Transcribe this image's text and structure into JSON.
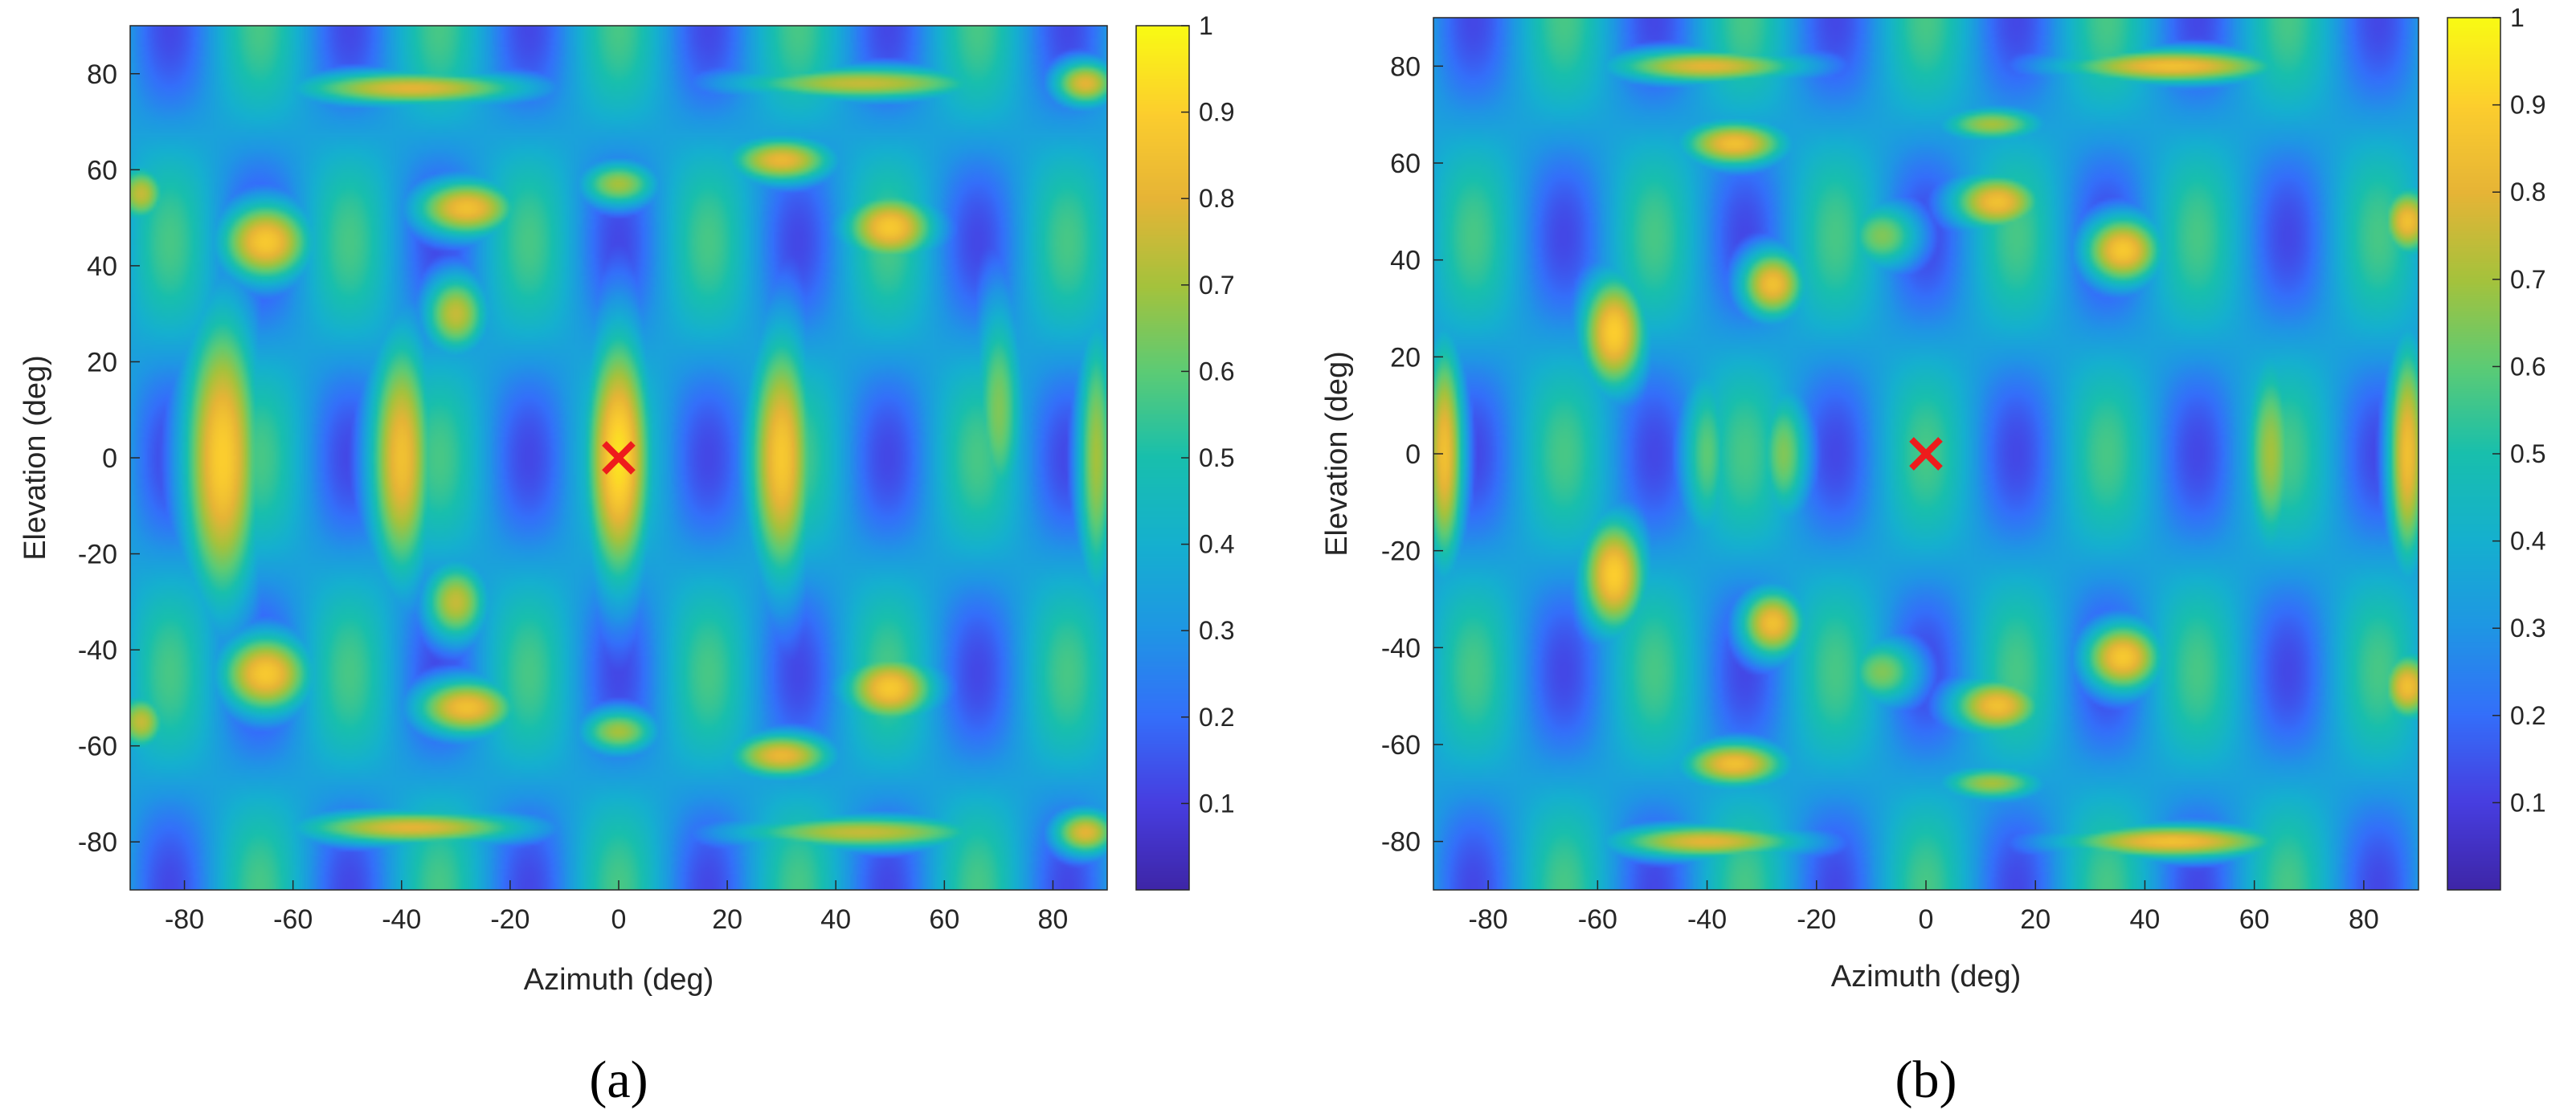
{
  "colors": {
    "colormap": "parula",
    "marker": "#ee1c1c",
    "axis": "#262626"
  },
  "chart_data": [
    {
      "type": "heatmap",
      "panel_label": "(a)",
      "xlabel": "Azimuth (deg)",
      "ylabel": "Elevation (deg)",
      "xlim": [
        -90,
        90
      ],
      "ylim": [
        -90,
        90
      ],
      "xticks": [
        -80,
        -60,
        -40,
        -20,
        0,
        20,
        40,
        60,
        80
      ],
      "yticks": [
        80,
        60,
        40,
        20,
        0,
        -20,
        -40,
        -60,
        -80
      ],
      "colorbar": {
        "range": [
          0,
          1
        ],
        "ticks": [
          "1",
          "0.9",
          "0.8",
          "0.7",
          "0.6",
          "0.5",
          "0.4",
          "0.3",
          "0.2",
          "0.1"
        ]
      },
      "marker": {
        "symbol": "x",
        "azimuth": 0,
        "elevation": 0
      },
      "description_peaks": [
        {
          "az": 0,
          "el": 0,
          "v": 0.95,
          "saz": 5,
          "sel": 22
        },
        {
          "az": -73,
          "el": 0,
          "v": 0.9,
          "saz": 6,
          "sel": 26
        },
        {
          "az": -40,
          "el": 0,
          "v": 0.85,
          "saz": 5,
          "sel": 22
        },
        {
          "az": 30,
          "el": 0,
          "v": 0.88,
          "saz": 5,
          "sel": 22
        },
        {
          "az": -65,
          "el": 45,
          "v": 0.88,
          "saz": 7,
          "sel": 7
        },
        {
          "az": -65,
          "el": -45,
          "v": 0.88,
          "saz": 7,
          "sel": 7
        },
        {
          "az": -28,
          "el": 52,
          "v": 0.85,
          "saz": 8,
          "sel": 5
        },
        {
          "az": -28,
          "el": -52,
          "v": 0.85,
          "saz": 8,
          "sel": 5
        },
        {
          "az": 50,
          "el": 48,
          "v": 0.88,
          "saz": 7,
          "sel": 6
        },
        {
          "az": 50,
          "el": -48,
          "v": 0.88,
          "saz": 7,
          "sel": 6
        },
        {
          "az": 30,
          "el": 62,
          "v": 0.82,
          "saz": 8,
          "sel": 4
        },
        {
          "az": 30,
          "el": -62,
          "v": 0.82,
          "saz": 8,
          "sel": 4
        },
        {
          "az": -30,
          "el": 30,
          "v": 0.75,
          "saz": 5,
          "sel": 7
        },
        {
          "az": -30,
          "el": -30,
          "v": 0.75,
          "saz": 5,
          "sel": 7
        },
        {
          "az": -38,
          "el": 77,
          "v": 0.8,
          "saz": 18,
          "sel": 3
        },
        {
          "az": -38,
          "el": -77,
          "v": 0.8,
          "saz": 18,
          "sel": 3
        },
        {
          "az": 45,
          "el": 78,
          "v": 0.75,
          "saz": 20,
          "sel": 3
        },
        {
          "az": 45,
          "el": -78,
          "v": 0.75,
          "saz": 20,
          "sel": 3
        },
        {
          "az": 0,
          "el": 57,
          "v": 0.7,
          "saz": 6,
          "sel": 4
        },
        {
          "az": 0,
          "el": -57,
          "v": 0.7,
          "saz": 6,
          "sel": 4
        },
        {
          "az": 70,
          "el": 10,
          "v": 0.65,
          "saz": 4,
          "sel": 20
        },
        {
          "az": 88,
          "el": 0,
          "v": 0.7,
          "saz": 3,
          "sel": 25
        },
        {
          "az": -88,
          "el": 55,
          "v": 0.75,
          "saz": 4,
          "sel": 5
        },
        {
          "az": -88,
          "el": -55,
          "v": 0.75,
          "saz": 4,
          "sel": 5
        },
        {
          "az": 86,
          "el": 78,
          "v": 0.8,
          "saz": 5,
          "sel": 4
        },
        {
          "az": 86,
          "el": -78,
          "v": 0.8,
          "saz": 5,
          "sel": 4
        }
      ]
    },
    {
      "type": "heatmap",
      "panel_label": "(b)",
      "xlabel": "Azimuth (deg)",
      "ylabel": "Elevation (deg)",
      "xlim": [
        -90,
        90
      ],
      "ylim": [
        -90,
        90
      ],
      "xticks": [
        -80,
        -60,
        -40,
        -20,
        0,
        20,
        40,
        60,
        80
      ],
      "yticks": [
        80,
        60,
        40,
        20,
        0,
        -20,
        -40,
        -60,
        -80
      ],
      "colorbar": {
        "range": [
          0,
          1
        ],
        "ticks": [
          "1",
          "0.9",
          "0.8",
          "0.7",
          "0.6",
          "0.5",
          "0.4",
          "0.3",
          "0.2",
          "0.1"
        ]
      },
      "marker": {
        "symbol": "x",
        "azimuth": 0,
        "elevation": 0
      },
      "description_peaks": [
        {
          "az": -57,
          "el": 25,
          "v": 0.9,
          "saz": 5,
          "sel": 10
        },
        {
          "az": -57,
          "el": -25,
          "v": 0.9,
          "saz": 5,
          "sel": 10
        },
        {
          "az": -88,
          "el": 0,
          "v": 0.85,
          "saz": 3,
          "sel": 20
        },
        {
          "az": 88,
          "el": 0,
          "v": 0.85,
          "saz": 3,
          "sel": 20
        },
        {
          "az": -28,
          "el": 35,
          "v": 0.85,
          "saz": 5,
          "sel": 6
        },
        {
          "az": -28,
          "el": -35,
          "v": 0.85,
          "saz": 5,
          "sel": 6
        },
        {
          "az": -35,
          "el": 64,
          "v": 0.85,
          "saz": 8,
          "sel": 4
        },
        {
          "az": -35,
          "el": -64,
          "v": 0.85,
          "saz": 8,
          "sel": 4
        },
        {
          "az": 13,
          "el": 52,
          "v": 0.85,
          "saz": 7,
          "sel": 5
        },
        {
          "az": 13,
          "el": -52,
          "v": 0.85,
          "saz": 7,
          "sel": 5
        },
        {
          "az": 36,
          "el": 42,
          "v": 0.88,
          "saz": 6,
          "sel": 6
        },
        {
          "az": 36,
          "el": -42,
          "v": 0.88,
          "saz": 6,
          "sel": 6
        },
        {
          "az": 88,
          "el": 48,
          "v": 0.85,
          "saz": 4,
          "sel": 6
        },
        {
          "az": 88,
          "el": -48,
          "v": 0.85,
          "saz": 4,
          "sel": 6
        },
        {
          "az": -40,
          "el": 80,
          "v": 0.8,
          "saz": 15,
          "sel": 3
        },
        {
          "az": -40,
          "el": -80,
          "v": 0.8,
          "saz": 15,
          "sel": 3
        },
        {
          "az": 45,
          "el": 80,
          "v": 0.85,
          "saz": 17,
          "sel": 3
        },
        {
          "az": 45,
          "el": -80,
          "v": 0.85,
          "saz": 17,
          "sel": 3
        },
        {
          "az": 63,
          "el": 0,
          "v": 0.7,
          "saz": 4,
          "sel": 18
        },
        {
          "az": -8,
          "el": 45,
          "v": 0.65,
          "saz": 6,
          "sel": 6
        },
        {
          "az": -8,
          "el": -45,
          "v": 0.65,
          "saz": 6,
          "sel": 6
        },
        {
          "az": 12,
          "el": 68,
          "v": 0.7,
          "saz": 8,
          "sel": 3
        },
        {
          "az": 12,
          "el": -68,
          "v": 0.7,
          "saz": 8,
          "sel": 3
        },
        {
          "az": -26,
          "el": 0,
          "v": 0.65,
          "saz": 4,
          "sel": 12
        },
        {
          "az": -40,
          "el": 0,
          "v": 0.6,
          "saz": 4,
          "sel": 16
        }
      ]
    }
  ]
}
